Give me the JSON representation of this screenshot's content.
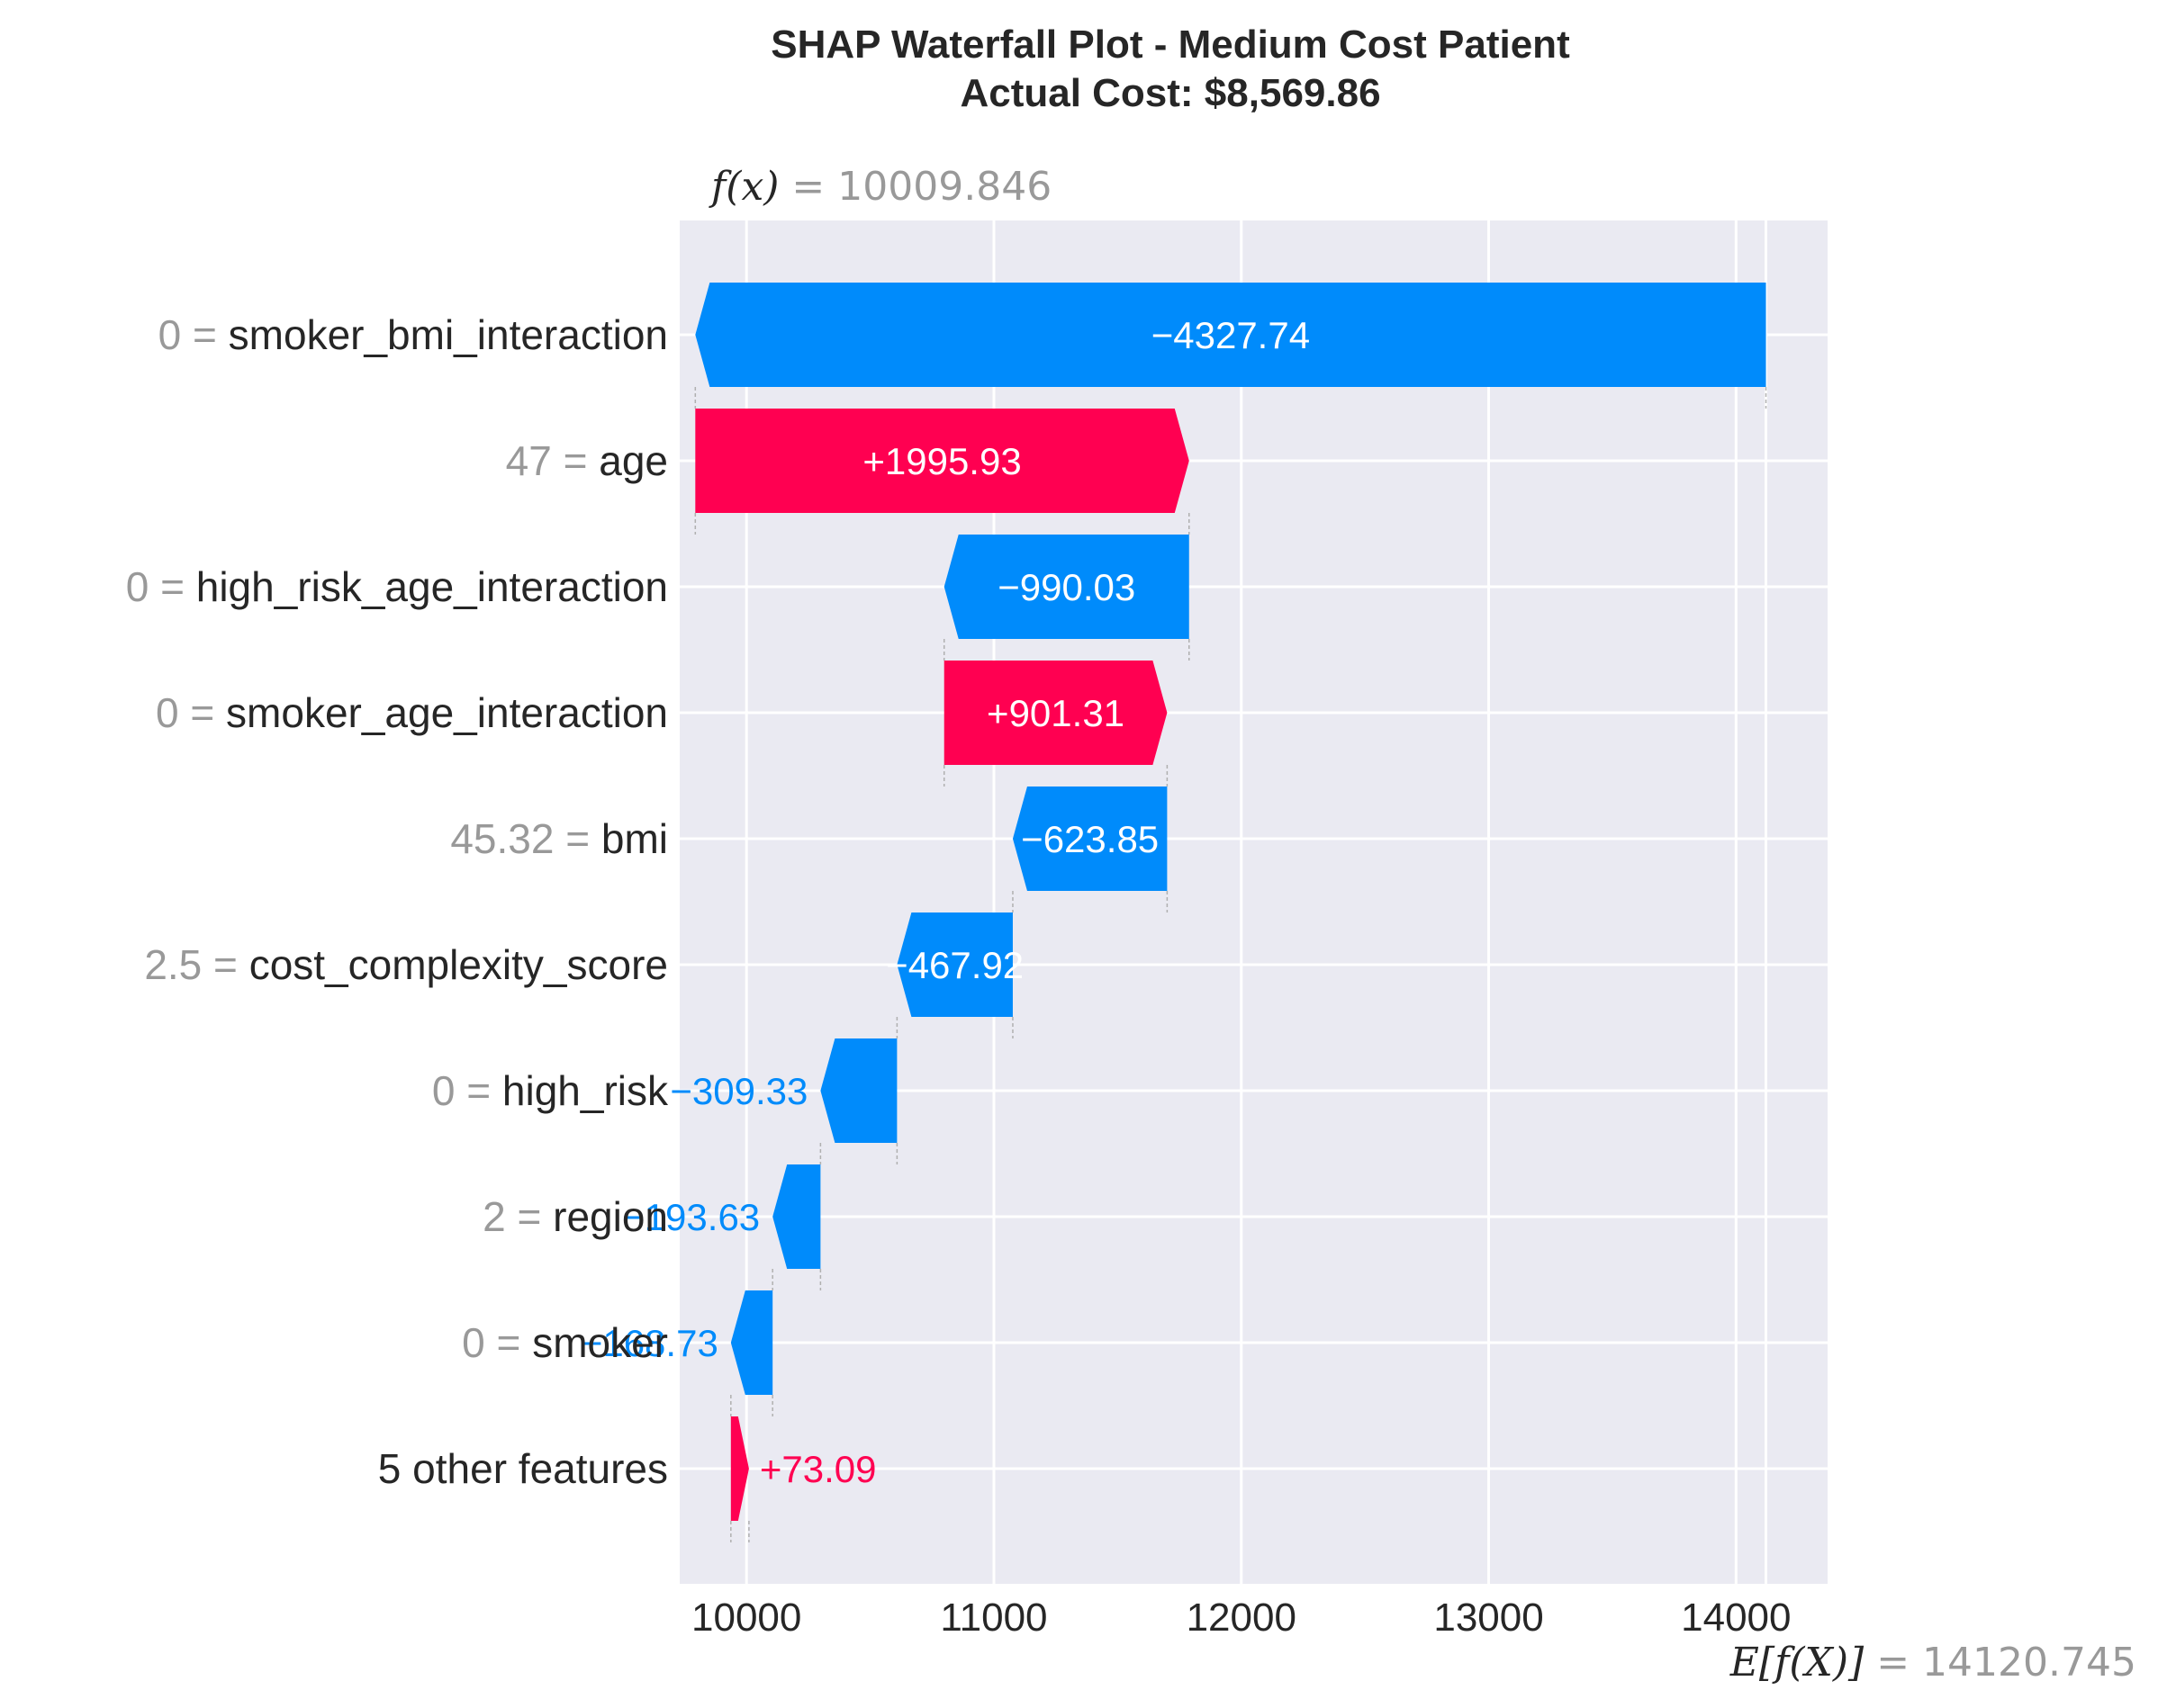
{
  "chart_data": {
    "type": "bar",
    "subtype": "waterfall",
    "title": "SHAP Waterfall Plot - Medium Cost Patient",
    "subtitle": "Actual Cost: $8,569.86",
    "fx_label": "f(x)",
    "fx_value": "10009.846",
    "base_label": "E[f(X)]",
    "base_value": "14120.745",
    "fx_numeric": 10009.846,
    "base_numeric": 14120.745,
    "xlim": [
      9730,
      14370
    ],
    "xticks": [
      10000,
      11000,
      12000,
      13000,
      14000
    ],
    "grid": true,
    "features": [
      {
        "value": "0",
        "name": "smoker_bmi_interaction",
        "shap": -4327.74,
        "label": "−4327.74",
        "label_inside": true
      },
      {
        "value": "47",
        "name": "age",
        "shap": 1995.93,
        "label": "+1995.93",
        "label_inside": true
      },
      {
        "value": "0",
        "name": "high_risk_age_interaction",
        "shap": -990.03,
        "label": "−990.03",
        "label_inside": true
      },
      {
        "value": "0",
        "name": "smoker_age_interaction",
        "shap": 901.31,
        "label": "+901.31",
        "label_inside": true
      },
      {
        "value": "45.32",
        "name": "bmi",
        "shap": -623.85,
        "label": "−623.85",
        "label_inside": true
      },
      {
        "value": "2.5",
        "name": "cost_complexity_score",
        "shap": -467.92,
        "label": "−467.92",
        "label_inside": true
      },
      {
        "value": "0",
        "name": "high_risk",
        "shap": -309.33,
        "label": "−309.33",
        "label_inside": false
      },
      {
        "value": "2",
        "name": "region",
        "shap": -193.63,
        "label": "−193.63",
        "label_inside": false
      },
      {
        "value": "0",
        "name": "smoker",
        "shap": -168.73,
        "label": "−168.73",
        "label_inside": false
      },
      {
        "value": "",
        "name": "5 other features",
        "shap": 73.09,
        "label": "+73.09",
        "label_inside": false
      }
    ],
    "colors": {
      "positive": "#ff0051",
      "negative": "#008bfb",
      "background": "#eaeaf2",
      "grid": "#ffffff"
    }
  }
}
